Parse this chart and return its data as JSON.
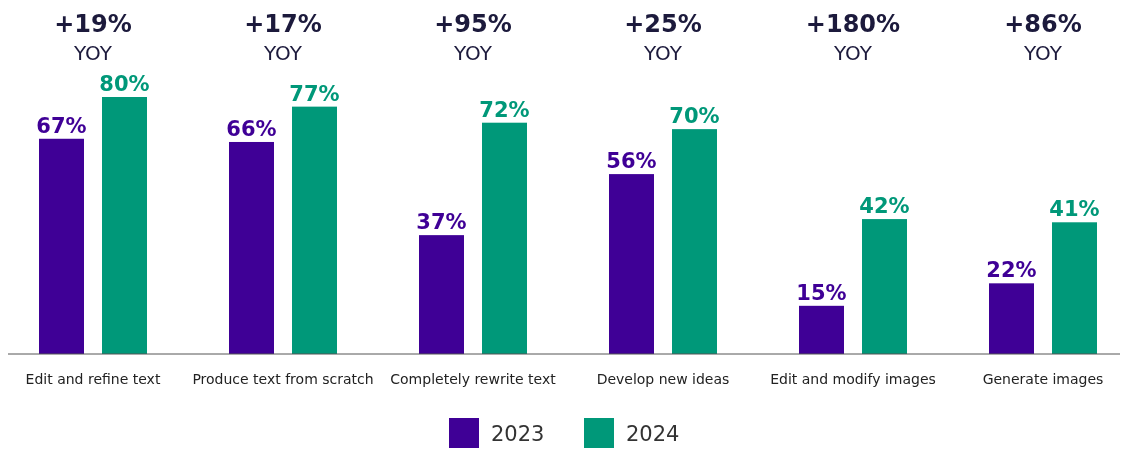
{
  "chart_data": {
    "type": "bar",
    "categories": [
      "Edit and refine text",
      "Produce text from scratch",
      "Completely rewrite text",
      "Develop new ideas",
      "Edit and modify images",
      "Generate images"
    ],
    "series": [
      {
        "name": "2023",
        "color": "#3f0096",
        "values": [
          67,
          66,
          37,
          56,
          15,
          22
        ],
        "value_labels": [
          "67%",
          "66%",
          "37%",
          "56%",
          "15%",
          "22%"
        ]
      },
      {
        "name": "2024",
        "color": "#009879",
        "values": [
          80,
          77,
          72,
          70,
          42,
          41
        ],
        "value_labels": [
          "80%",
          "77%",
          "72%",
          "70%",
          "42%",
          "41%"
        ]
      }
    ],
    "annotations": [
      "+19%\nYOY",
      "+17%\nYOY",
      "+95%\nYOY",
      "+25%\nYOY",
      "+180%\nYOY",
      "+86%\nYOY"
    ],
    "legend": "bottom"
  }
}
